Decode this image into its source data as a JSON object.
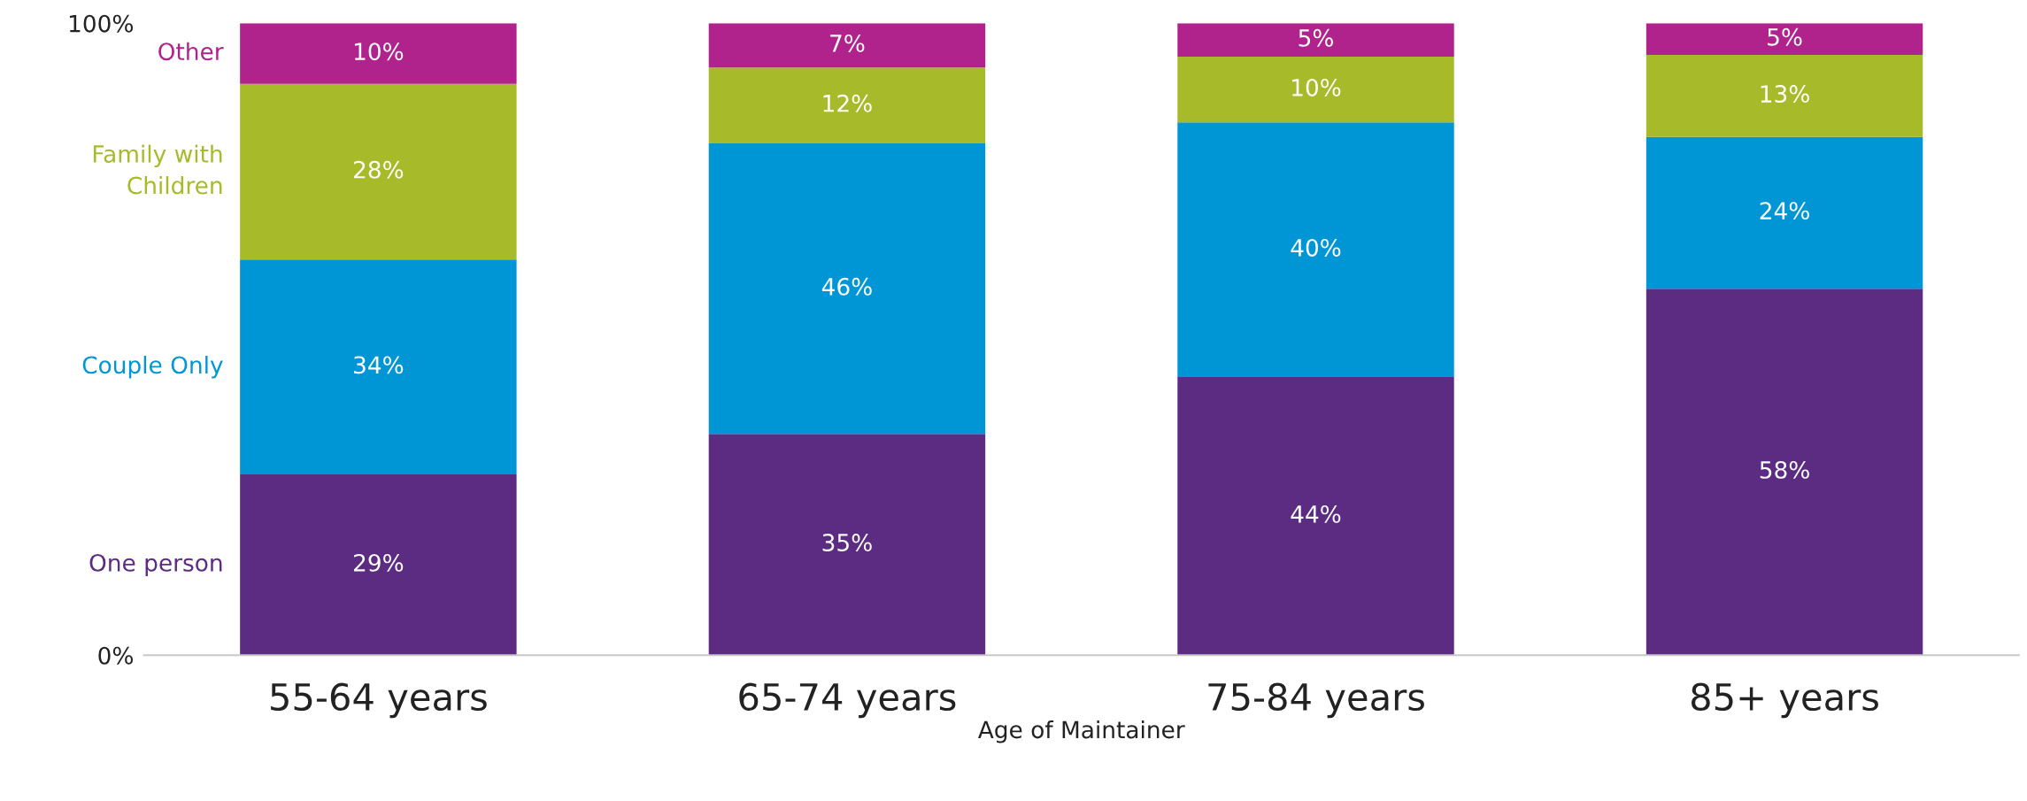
{
  "chart_data": {
    "type": "bar",
    "stacked": true,
    "xlabel": "Age of Maintainer",
    "categories": [
      "55-64 years",
      "65-74 years",
      "75-84 years",
      "85+ years"
    ],
    "series": [
      {
        "name": "One person",
        "color": "#5b2c82",
        "values": [
          28.6,
          35,
          44,
          58
        ],
        "value_labels": [
          "29%",
          "35%",
          "44%",
          "58%"
        ]
      },
      {
        "name": "Couple Only",
        "color": "#0096d6",
        "values": [
          34,
          46,
          40.3,
          24
        ],
        "value_labels": [
          "34%",
          "46%",
          "40%",
          "24%"
        ]
      },
      {
        "name": "Family with\nChildren",
        "color": "#a6ba2a",
        "values": [
          27.8,
          12,
          10.4,
          13
        ],
        "value_labels": [
          "28%",
          "12%",
          "10%",
          "13%"
        ]
      },
      {
        "name": "Other",
        "color": "#b0228c",
        "values": [
          9.6,
          7,
          5.3,
          5
        ],
        "value_labels": [
          "10%",
          "7%",
          "5%",
          "5%"
        ]
      }
    ],
    "ylim": [
      0,
      100
    ],
    "yticks": [
      {
        "value": 0,
        "label": "0%"
      },
      {
        "value": 100,
        "label": "100%"
      }
    ],
    "grid": false
  }
}
